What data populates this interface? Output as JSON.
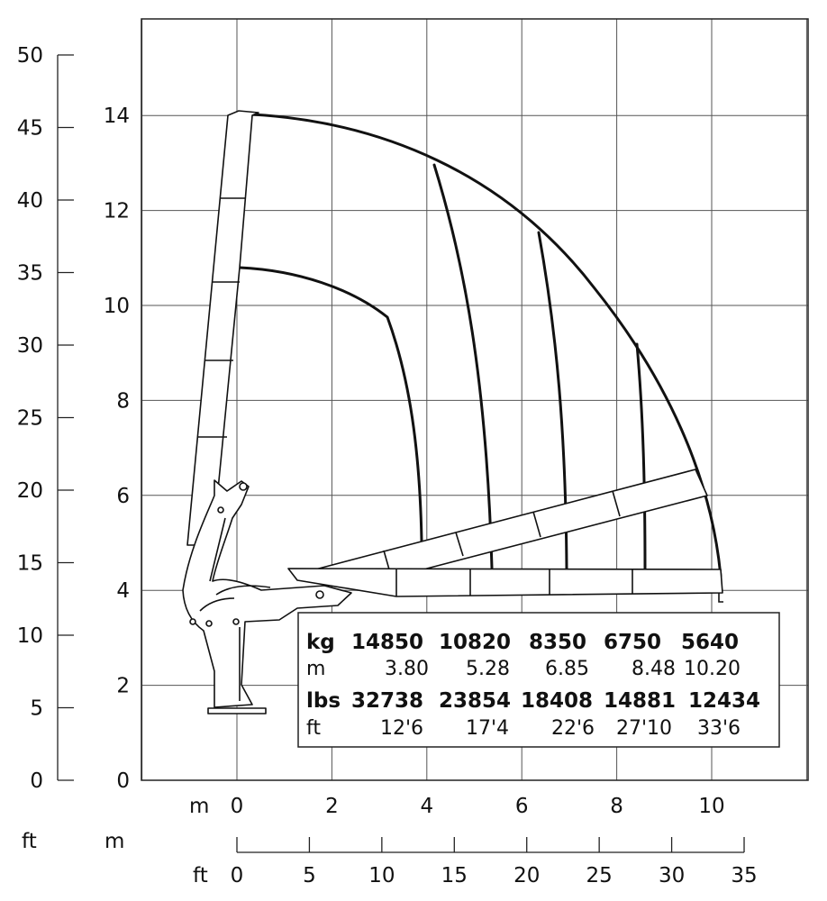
{
  "axes": {
    "ft_left": {
      "ticks": [
        "0",
        "5",
        "10",
        "15",
        "20",
        "25",
        "30",
        "35",
        "40",
        "45",
        "50"
      ],
      "unit": "ft"
    },
    "m_left": {
      "ticks": [
        "0",
        "2",
        "4",
        "6",
        "8",
        "10",
        "12",
        "14"
      ],
      "unit": "m"
    },
    "m_bottom": {
      "ticks": [
        "0",
        "2",
        "4",
        "6",
        "8",
        "10"
      ],
      "unit": "m"
    },
    "ft_bottom": {
      "ticks": [
        "0",
        "5",
        "10",
        "15",
        "20",
        "25",
        "30",
        "35"
      ],
      "unit": "ft"
    }
  },
  "load_table": {
    "kg_label": "kg",
    "kg_values": [
      "14850",
      "10820",
      "8350",
      "6750",
      "5640"
    ],
    "m_label": "m",
    "m_values": [
      "3.80",
      "5.28",
      "6.85",
      "8.48",
      "10.20"
    ],
    "lbs_label": "lbs",
    "lbs_values": [
      "32738",
      "23854",
      "18408",
      "14881",
      "12434"
    ],
    "ft_label": "ft",
    "ft_values": [
      "12'6",
      "17'4",
      "22'6",
      "27'10",
      "33'6"
    ]
  },
  "envelope": {
    "outer_reach_m": 10.2,
    "max_height_m": 14.0,
    "vertical_reaches_m": [
      3.8,
      5.28,
      6.85,
      8.48
    ]
  }
}
